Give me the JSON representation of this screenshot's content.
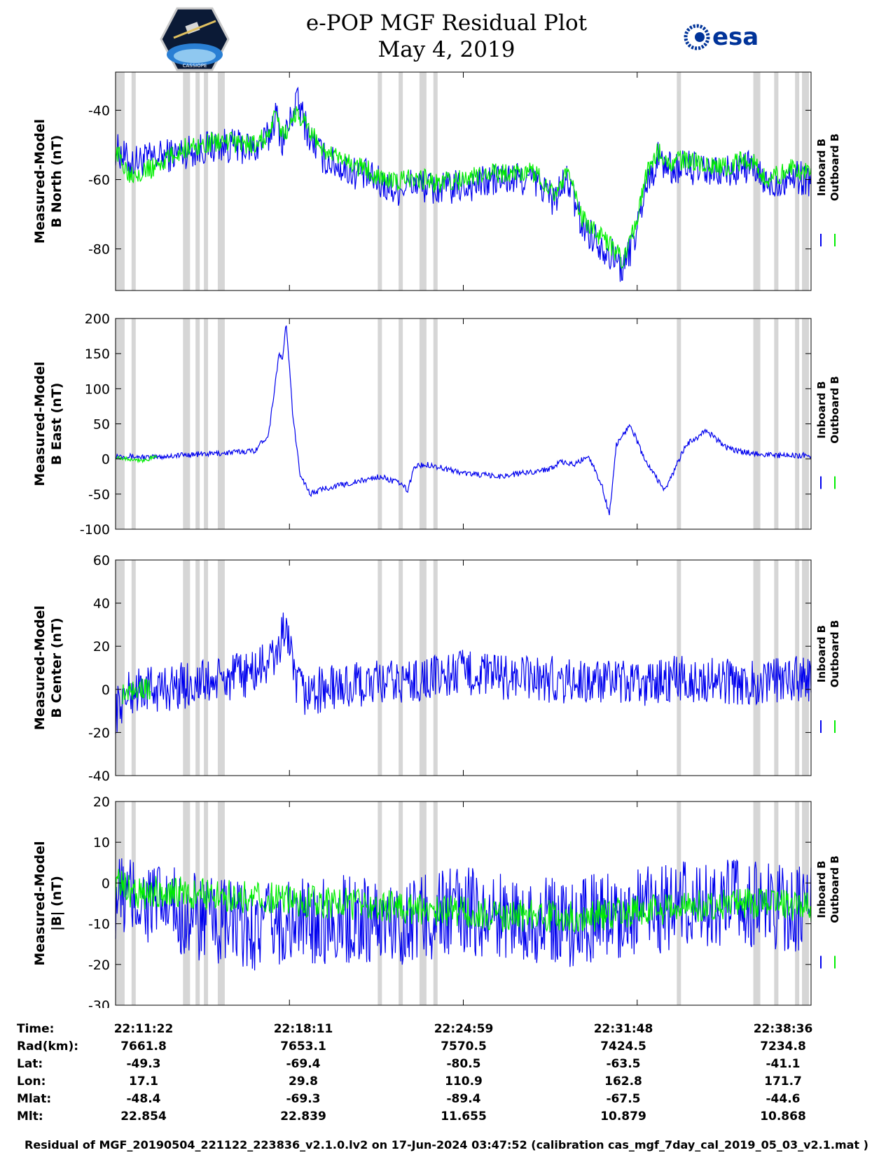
{
  "header": {
    "title": "e-POP MGF Residual Plot",
    "subtitle": "May 4, 2019",
    "logo_left_text": "CASSIOPE",
    "logo_right_text": "esa"
  },
  "colors": {
    "inboard": "#0000ee",
    "outboard": "#00ee00",
    "gap": "#d6d6d6"
  },
  "chart_data": [
    {
      "type": "line",
      "ylabel_line1": "Measured-Model",
      "ylabel_line2": "B North (nT)",
      "ylim": [
        -92,
        -29
      ],
      "yticks": [
        -40,
        -60,
        -80
      ],
      "x_tick_labels": [
        "22:11:22",
        "22:18:11",
        "22:24:59",
        "22:31:48",
        "22:38:36"
      ],
      "legend": [
        "Inboard B",
        "Outboard B"
      ],
      "series": [
        {
          "name": "Inboard B",
          "x": [
            0,
            0.02,
            0.05,
            0.1,
            0.15,
            0.2,
            0.22,
            0.23,
            0.24,
            0.25,
            0.26,
            0.28,
            0.3,
            0.33,
            0.36,
            0.4,
            0.43,
            0.46,
            0.5,
            0.55,
            0.6,
            0.62,
            0.63,
            0.65,
            0.67,
            0.7,
            0.72,
            0.73,
            0.75,
            0.76,
            0.78,
            0.8,
            0.82,
            0.85,
            0.88,
            0.91,
            0.94,
            0.97,
            1.0
          ],
          "y": [
            -51,
            -55,
            -54,
            -52,
            -50,
            -51,
            -48,
            -41,
            -49,
            -44,
            -37,
            -48,
            -54,
            -57,
            -59,
            -63,
            -61,
            -63,
            -62,
            -60,
            -60,
            -63,
            -66,
            -60,
            -73,
            -79,
            -83,
            -86,
            -74,
            -63,
            -54,
            -57,
            -56,
            -58,
            -58,
            -56,
            -62,
            -59,
            -60
          ],
          "amplitude": 5
        },
        {
          "name": "Outboard B",
          "x": [
            0,
            0.02,
            0.05,
            0.1,
            0.15,
            0.2,
            0.22,
            0.23,
            0.24,
            0.25,
            0.26,
            0.28,
            0.3,
            0.33,
            0.36,
            0.4,
            0.43,
            0.46,
            0.5,
            0.55,
            0.6,
            0.62,
            0.63,
            0.65,
            0.67,
            0.7,
            0.72,
            0.73,
            0.75,
            0.76,
            0.78,
            0.8,
            0.82,
            0.85,
            0.88,
            0.91,
            0.94,
            0.97,
            1.0
          ],
          "y": [
            -52,
            -58,
            -57,
            -51,
            -49,
            -50,
            -47,
            -42,
            -47,
            -45,
            -40,
            -46,
            -52,
            -55,
            -57,
            -61,
            -59,
            -61,
            -60,
            -58,
            -58,
            -61,
            -64,
            -58,
            -71,
            -77,
            -81,
            -84,
            -72,
            -60,
            -52,
            -55,
            -54,
            -56,
            -56,
            -54,
            -60,
            -57,
            -58
          ],
          "amplitude": 3
        }
      ]
    },
    {
      "type": "line",
      "ylabel_line1": "Measured-Model",
      "ylabel_line2": "B East (nT)",
      "ylim": [
        -100,
        200
      ],
      "yticks": [
        200,
        150,
        100,
        50,
        0,
        -50,
        -100
      ],
      "x_tick_labels": [
        "22:11:22",
        "22:18:11",
        "22:24:59",
        "22:31:48",
        "22:38:36"
      ],
      "legend": [
        "Inboard B",
        "Outboard B"
      ],
      "series": [
        {
          "name": "Inboard B",
          "x": [
            0,
            0.05,
            0.1,
            0.15,
            0.2,
            0.22,
            0.235,
            0.24,
            0.245,
            0.25,
            0.255,
            0.265,
            0.28,
            0.3,
            0.35,
            0.38,
            0.41,
            0.42,
            0.43,
            0.45,
            0.5,
            0.55,
            0.6,
            0.62,
            0.64,
            0.66,
            0.68,
            0.7,
            0.71,
            0.72,
            0.74,
            0.76,
            0.79,
            0.82,
            0.85,
            0.88,
            0.9,
            0.95,
            1.0
          ],
          "y": [
            5,
            2,
            6,
            8,
            12,
            35,
            150,
            140,
            195,
            130,
            60,
            -20,
            -50,
            -42,
            -32,
            -25,
            -35,
            -45,
            -10,
            -8,
            -20,
            -25,
            -18,
            -15,
            -5,
            -8,
            5,
            -40,
            -80,
            20,
            50,
            0,
            -45,
            20,
            40,
            15,
            10,
            5,
            5
          ],
          "amplitude": 4
        },
        {
          "name": "Outboard B",
          "x": [
            0,
            0.02,
            0.04,
            0.06
          ],
          "y": [
            3,
            0,
            -2,
            3
          ],
          "amplitude": 3
        }
      ]
    },
    {
      "type": "line",
      "ylabel_line1": "Measured-Model",
      "ylabel_line2": "B Center (nT)",
      "ylim": [
        -40,
        60
      ],
      "yticks": [
        60,
        40,
        20,
        0,
        -20,
        -40
      ],
      "x_tick_labels": [
        "22:11:22",
        "22:18:11",
        "22:24:59",
        "22:31:48",
        "22:38:36"
      ],
      "legend": [
        "Inboard B",
        "Outboard B"
      ],
      "series": [
        {
          "name": "Inboard B",
          "x": [
            0,
            0.01,
            0.03,
            0.06,
            0.1,
            0.15,
            0.2,
            0.23,
            0.245,
            0.25,
            0.255,
            0.27,
            0.3,
            0.35,
            0.4,
            0.45,
            0.5,
            0.55,
            0.6,
            0.65,
            0.7,
            0.75,
            0.8,
            0.85,
            0.9,
            0.95,
            1.0
          ],
          "y": [
            -10,
            -5,
            0,
            0,
            2,
            4,
            8,
            15,
            30,
            22,
            5,
            -2,
            0,
            2,
            3,
            5,
            8,
            6,
            5,
            4,
            3,
            2,
            5,
            4,
            3,
            4,
            5
          ],
          "amplitude": 11
        },
        {
          "name": "Outboard B",
          "x": [
            0.01,
            0.03,
            0.05
          ],
          "y": [
            -2,
            1,
            0
          ],
          "amplitude": 5
        }
      ]
    },
    {
      "type": "line",
      "ylabel_line1": "Measured-Model",
      "ylabel_line2": "|B| (nT)",
      "ylim": [
        -30,
        20
      ],
      "yticks": [
        20,
        10,
        0,
        -10,
        -20,
        -30
      ],
      "x_tick_labels": [
        "22:11:22",
        "22:18:11",
        "22:24:59",
        "22:31:48",
        "22:38:36"
      ],
      "legend": [
        "Inboard B",
        "Outboard B"
      ],
      "series": [
        {
          "name": "Inboard B",
          "x": [
            0,
            0.05,
            0.1,
            0.15,
            0.2,
            0.25,
            0.3,
            0.35,
            0.4,
            0.45,
            0.5,
            0.55,
            0.6,
            0.65,
            0.7,
            0.75,
            0.8,
            0.85,
            0.9,
            0.95,
            1.0
          ],
          "y": [
            -3,
            -5,
            -8,
            -10,
            -11,
            -10,
            -9,
            -9,
            -10,
            -8,
            -7,
            -8,
            -9,
            -10,
            -8,
            -7,
            -6,
            -5,
            -5,
            -6,
            -7
          ],
          "amplitude": 11
        },
        {
          "name": "Outboard B",
          "x": [
            0,
            0.02,
            0.04,
            0.06,
            0.5,
            0.55,
            0.7,
            0.8,
            0.9,
            1.0
          ],
          "y": [
            0,
            -2,
            -3,
            -2,
            -7,
            -8,
            -8,
            -6,
            -5,
            -6
          ],
          "amplitude": 4
        }
      ]
    }
  ],
  "gap_positions": [
    0.003,
    0.01,
    0.026,
    0.1,
    0.118,
    0.13,
    0.15,
    0.38,
    0.41,
    0.44,
    0.46,
    0.81,
    0.92,
    0.95,
    0.98,
    0.99
  ],
  "info": {
    "labels": [
      "Time:",
      "Rad(km):",
      "Lat:",
      "Lon:",
      "Mlat:",
      "Mlt:"
    ],
    "columns": [
      [
        "22:11:22",
        "7661.8",
        "-49.3",
        "17.1",
        "-48.4",
        "22.854"
      ],
      [
        "22:18:11",
        "7653.1",
        "-69.4",
        "29.8",
        "-69.3",
        "22.839"
      ],
      [
        "22:24:59",
        "7570.5",
        "-80.5",
        "110.9",
        "-89.4",
        "11.655"
      ],
      [
        "22:31:48",
        "7424.5",
        "-63.5",
        "162.8",
        "-67.5",
        "10.879"
      ],
      [
        "22:38:36",
        "7234.8",
        "-41.1",
        "171.7",
        "-44.6",
        "10.868"
      ]
    ]
  },
  "footer": "Residual of MGF_20190504_221122_223836_v2.1.0.lv2 on 17-Jun-2024 03:47:52 (calibration cas_mgf_7day_cal_2019_05_03_v2.1.mat )"
}
